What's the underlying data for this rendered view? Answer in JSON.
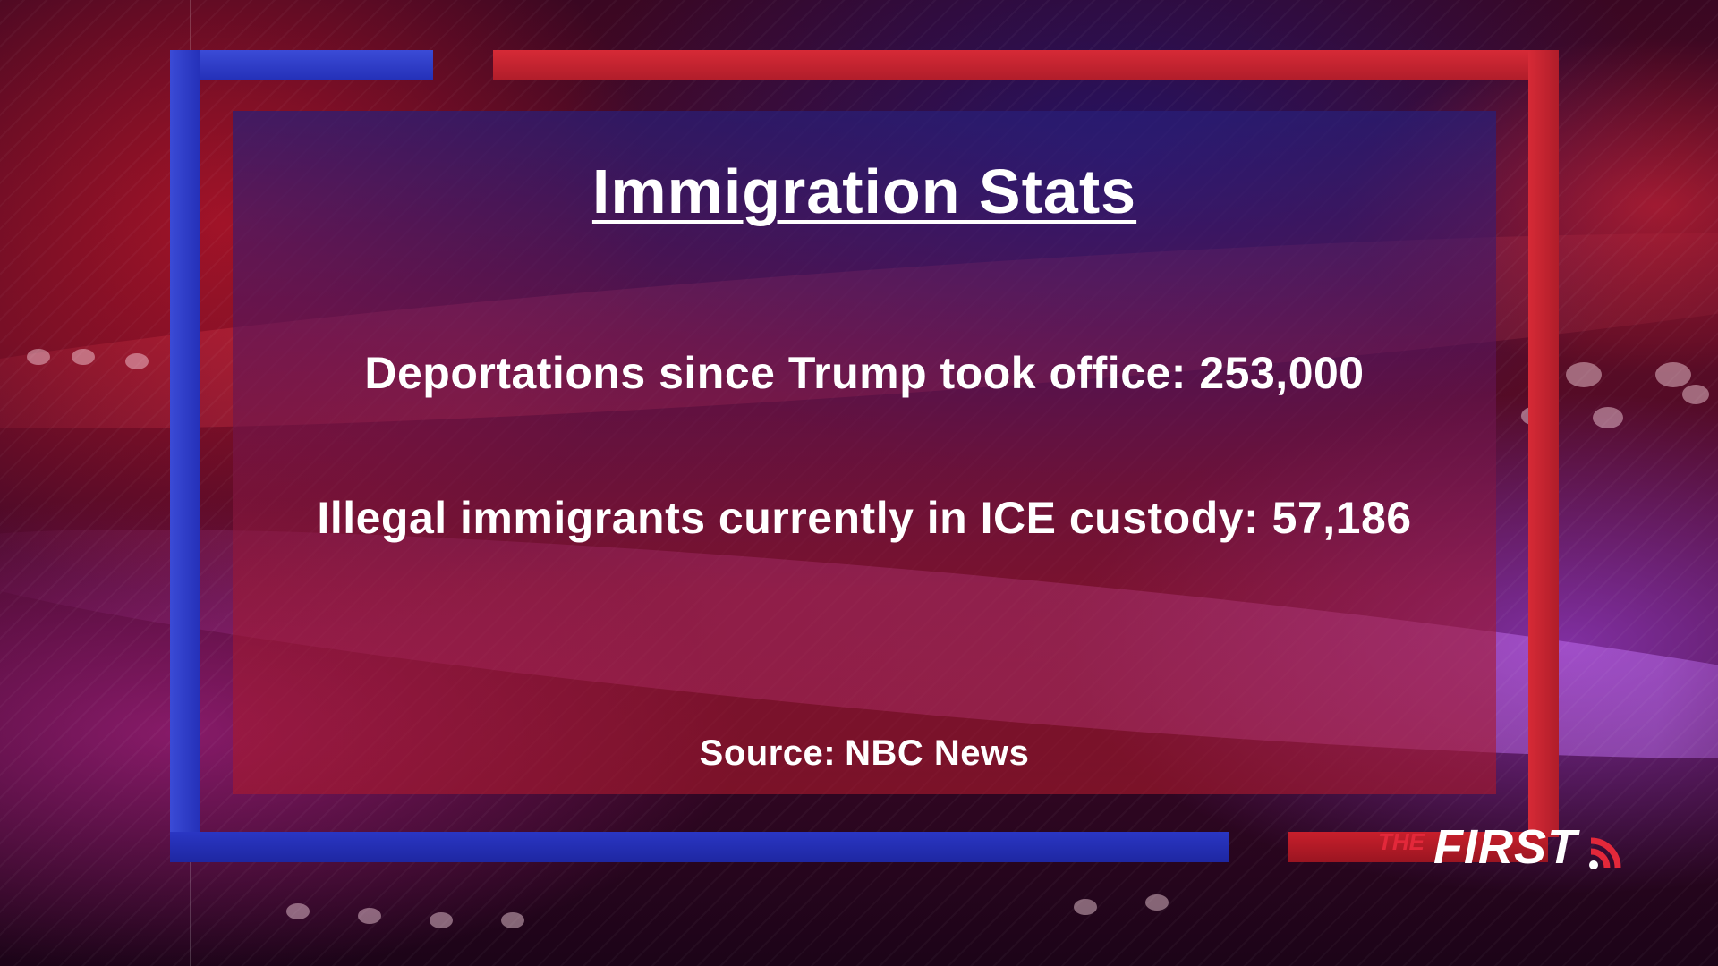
{
  "panel": {
    "title": "Immigration Stats",
    "stats": [
      {
        "label": "Deportations since Trump took office:",
        "value": "253,000"
      },
      {
        "label": "Illegal immigrants currently in ICE custody:",
        "value": "57,186"
      }
    ],
    "source_label": "Source:",
    "source_value": "NBC News"
  },
  "logo": {
    "prefix": "THE",
    "name": "FIRST",
    "icon": "broadcast-signal-icon"
  },
  "colors": {
    "frame_blue": "#2a36c4",
    "frame_red": "#c81f2c",
    "text": "#ffffff",
    "logo_accent": "#e3283a"
  }
}
